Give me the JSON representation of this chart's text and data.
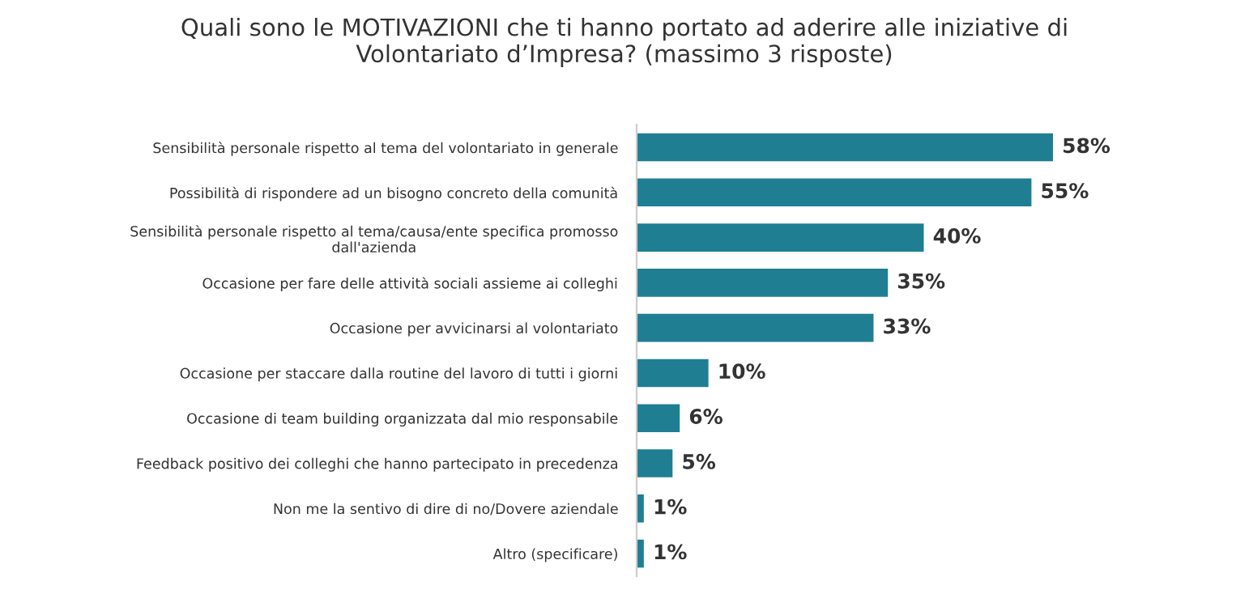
{
  "chart_data": {
    "type": "bar",
    "orientation": "horizontal",
    "title": "Quali sono le MOTIVAZIONI che ti hanno portato ad aderire alle iniziative di\nVolontariato d’Impresa? (massimo 3 risposte)",
    "categories": [
      "Sensibilità personale rispetto al tema del volontariato in generale",
      "Possibilità di rispondere ad un bisogno concreto della comunità",
      "Sensibilità personale rispetto al tema/causa/ente specifica promosso\ndall'azienda",
      "Occasione per fare delle attività sociali assieme ai colleghi",
      "Occasione per avvicinarsi al volontariato",
      "Occasione per staccare dalla routine del lavoro di tutti i giorni",
      "Occasione di team building organizzata dal mio responsabile",
      "Feedback positivo dei colleghi che hanno partecipato in precedenza",
      "Non me la sentivo di dire di no/Dovere aziendale",
      "Altro (specificare)"
    ],
    "values": [
      58,
      55,
      40,
      35,
      33,
      10,
      6,
      5,
      1,
      1
    ],
    "value_labels": [
      "58%",
      "55%",
      "40%",
      "35%",
      "33%",
      "10%",
      "6%",
      "5%",
      "1%",
      "1%"
    ],
    "color": "#1f7e92",
    "tick_labels": "y",
    "grid": false,
    "legend": false
  }
}
